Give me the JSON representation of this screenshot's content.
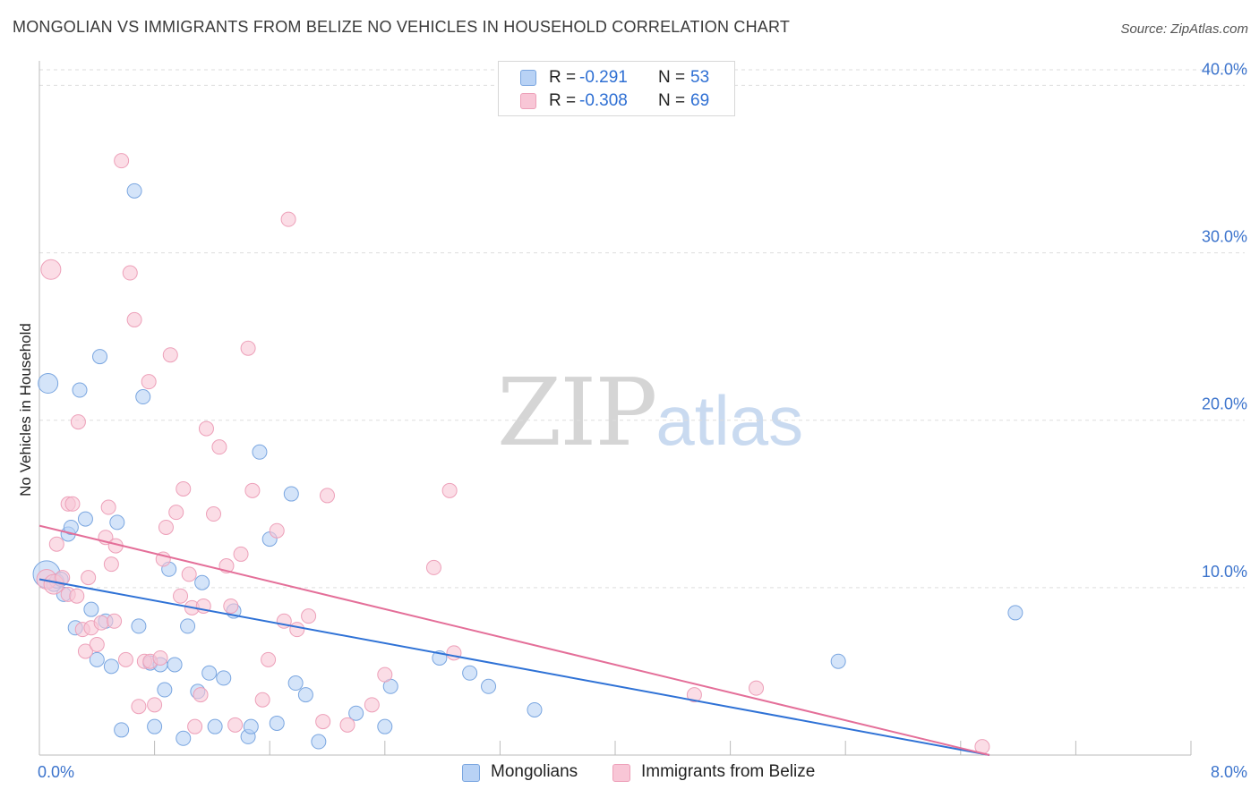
{
  "title": "MONGOLIAN VS IMMIGRANTS FROM BELIZE NO VEHICLES IN HOUSEHOLD CORRELATION CHART",
  "source": "Source: ZipAtlas.com",
  "watermark": {
    "zip": "ZIP",
    "atlas": "atlas"
  },
  "legend": {
    "row1": {
      "r_label": "R =",
      "r_value": "-0.291",
      "n_label": "N =",
      "n_value": "53"
    },
    "row2": {
      "r_label": "R =",
      "r_value": "-0.308",
      "n_label": "N =",
      "n_value": "69"
    }
  },
  "bottom_legend": {
    "series1": "Mongolians",
    "series2": "Immigrants from Belize"
  },
  "colors": {
    "blue_fill": "#b8d2f5",
    "blue_stroke": "#7aa6e0",
    "blue_line": "#2f72d6",
    "pink_fill": "#f8c6d6",
    "pink_stroke": "#eda0b9",
    "pink_line": "#e46f99",
    "tick_text": "#3b73cc",
    "grid": "#dddddd"
  },
  "chart_data": {
    "type": "scatter",
    "title": "MONGOLIAN VS IMMIGRANTS FROM BELIZE NO VEHICLES IN HOUSEHOLD CORRELATION CHART",
    "xlabel": "",
    "ylabel": "No Vehicles in Household",
    "xlim": [
      0,
      8
    ],
    "ylim": [
      0,
      42
    ],
    "x_tick_labels": [
      "0.0%",
      "8.0%"
    ],
    "y_ticks": [
      10,
      20,
      30,
      40
    ],
    "y_tick_labels": [
      "10.0%",
      "20.0%",
      "30.0%",
      "40.0%"
    ],
    "grid": true,
    "legend_position": "top-center",
    "series": [
      {
        "name": "Mongolians",
        "r": -0.291,
        "n": 53,
        "trend": {
          "x": [
            0,
            6.6
          ],
          "y": [
            10.5,
            0
          ]
        },
        "points": [
          {
            "x": 0.05,
            "y": 10.8,
            "s": 3
          },
          {
            "x": 0.06,
            "y": 22.2,
            "s": 2
          },
          {
            "x": 0.1,
            "y": 10.2,
            "s": 1
          },
          {
            "x": 0.12,
            "y": 10.4,
            "s": 1
          },
          {
            "x": 0.15,
            "y": 10.5,
            "s": 1
          },
          {
            "x": 0.17,
            "y": 9.6,
            "s": 1
          },
          {
            "x": 0.2,
            "y": 13.2,
            "s": 1
          },
          {
            "x": 0.22,
            "y": 13.6,
            "s": 1
          },
          {
            "x": 0.25,
            "y": 7.6,
            "s": 1
          },
          {
            "x": 0.28,
            "y": 21.8,
            "s": 1
          },
          {
            "x": 0.32,
            "y": 14.1,
            "s": 1
          },
          {
            "x": 0.36,
            "y": 8.7,
            "s": 1
          },
          {
            "x": 0.4,
            "y": 5.7,
            "s": 1
          },
          {
            "x": 0.42,
            "y": 23.8,
            "s": 1
          },
          {
            "x": 0.46,
            "y": 8.0,
            "s": 1
          },
          {
            "x": 0.5,
            "y": 5.3,
            "s": 1
          },
          {
            "x": 0.54,
            "y": 13.9,
            "s": 1
          },
          {
            "x": 0.57,
            "y": 1.5,
            "s": 1
          },
          {
            "x": 0.66,
            "y": 33.7,
            "s": 1
          },
          {
            "x": 0.69,
            "y": 7.7,
            "s": 1
          },
          {
            "x": 0.72,
            "y": 21.4,
            "s": 1
          },
          {
            "x": 0.77,
            "y": 5.5,
            "s": 1
          },
          {
            "x": 0.8,
            "y": 1.7,
            "s": 1
          },
          {
            "x": 0.84,
            "y": 5.4,
            "s": 1
          },
          {
            "x": 0.87,
            "y": 3.9,
            "s": 1
          },
          {
            "x": 0.9,
            "y": 11.1,
            "s": 1
          },
          {
            "x": 0.94,
            "y": 5.4,
            "s": 1
          },
          {
            "x": 1.0,
            "y": 1.0,
            "s": 1
          },
          {
            "x": 1.03,
            "y": 7.7,
            "s": 1
          },
          {
            "x": 1.1,
            "y": 3.8,
            "s": 1
          },
          {
            "x": 1.13,
            "y": 10.3,
            "s": 1
          },
          {
            "x": 1.18,
            "y": 4.9,
            "s": 1
          },
          {
            "x": 1.22,
            "y": 1.7,
            "s": 1
          },
          {
            "x": 1.28,
            "y": 4.6,
            "s": 1
          },
          {
            "x": 1.35,
            "y": 8.6,
            "s": 1
          },
          {
            "x": 1.45,
            "y": 1.1,
            "s": 1
          },
          {
            "x": 1.47,
            "y": 1.7,
            "s": 1
          },
          {
            "x": 1.53,
            "y": 18.1,
            "s": 1
          },
          {
            "x": 1.6,
            "y": 12.9,
            "s": 1
          },
          {
            "x": 1.65,
            "y": 1.9,
            "s": 1
          },
          {
            "x": 1.75,
            "y": 15.6,
            "s": 1
          },
          {
            "x": 1.78,
            "y": 4.3,
            "s": 1
          },
          {
            "x": 1.85,
            "y": 3.6,
            "s": 1
          },
          {
            "x": 1.94,
            "y": 0.8,
            "s": 1
          },
          {
            "x": 2.2,
            "y": 2.5,
            "s": 1
          },
          {
            "x": 2.4,
            "y": 1.7,
            "s": 1
          },
          {
            "x": 2.44,
            "y": 4.1,
            "s": 1
          },
          {
            "x": 2.78,
            "y": 5.8,
            "s": 1
          },
          {
            "x": 2.99,
            "y": 4.9,
            "s": 1
          },
          {
            "x": 3.12,
            "y": 4.1,
            "s": 1
          },
          {
            "x": 3.44,
            "y": 2.7,
            "s": 1
          },
          {
            "x": 5.55,
            "y": 5.6,
            "s": 1
          },
          {
            "x": 6.78,
            "y": 8.5,
            "s": 1
          }
        ]
      },
      {
        "name": "Immigrants from Belize",
        "r": -0.308,
        "n": 69,
        "trend": {
          "x": [
            0,
            6.6
          ],
          "y": [
            13.7,
            0
          ]
        },
        "points": [
          {
            "x": 0.05,
            "y": 10.5,
            "s": 2
          },
          {
            "x": 0.08,
            "y": 29.0,
            "s": 2
          },
          {
            "x": 0.1,
            "y": 10.2,
            "s": 2
          },
          {
            "x": 0.12,
            "y": 12.6,
            "s": 1
          },
          {
            "x": 0.16,
            "y": 10.6,
            "s": 1
          },
          {
            "x": 0.2,
            "y": 9.6,
            "s": 1
          },
          {
            "x": 0.2,
            "y": 15.0,
            "s": 1
          },
          {
            "x": 0.23,
            "y": 15.0,
            "s": 1
          },
          {
            "x": 0.26,
            "y": 9.5,
            "s": 1
          },
          {
            "x": 0.27,
            "y": 19.9,
            "s": 1
          },
          {
            "x": 0.3,
            "y": 7.5,
            "s": 1
          },
          {
            "x": 0.32,
            "y": 6.2,
            "s": 1
          },
          {
            "x": 0.36,
            "y": 7.6,
            "s": 1
          },
          {
            "x": 0.4,
            "y": 6.6,
            "s": 1
          },
          {
            "x": 0.43,
            "y": 7.9,
            "s": 1
          },
          {
            "x": 0.46,
            "y": 13.0,
            "s": 1
          },
          {
            "x": 0.48,
            "y": 14.8,
            "s": 1
          },
          {
            "x": 0.5,
            "y": 11.4,
            "s": 1
          },
          {
            "x": 0.53,
            "y": 12.5,
            "s": 1
          },
          {
            "x": 0.57,
            "y": 35.5,
            "s": 1
          },
          {
            "x": 0.6,
            "y": 5.7,
            "s": 1
          },
          {
            "x": 0.63,
            "y": 28.8,
            "s": 1
          },
          {
            "x": 0.66,
            "y": 26.0,
            "s": 1
          },
          {
            "x": 0.69,
            "y": 2.9,
            "s": 1
          },
          {
            "x": 0.73,
            "y": 5.6,
            "s": 1
          },
          {
            "x": 0.76,
            "y": 22.3,
            "s": 1
          },
          {
            "x": 0.77,
            "y": 5.6,
            "s": 1
          },
          {
            "x": 0.8,
            "y": 3.0,
            "s": 1
          },
          {
            "x": 0.84,
            "y": 5.8,
            "s": 1
          },
          {
            "x": 0.86,
            "y": 11.7,
            "s": 1
          },
          {
            "x": 0.88,
            "y": 13.6,
            "s": 1
          },
          {
            "x": 0.91,
            "y": 23.9,
            "s": 1
          },
          {
            "x": 0.95,
            "y": 14.5,
            "s": 1
          },
          {
            "x": 0.98,
            "y": 9.5,
            "s": 1
          },
          {
            "x": 1.0,
            "y": 15.9,
            "s": 1
          },
          {
            "x": 1.04,
            "y": 10.8,
            "s": 1
          },
          {
            "x": 1.06,
            "y": 8.8,
            "s": 1
          },
          {
            "x": 1.08,
            "y": 1.7,
            "s": 1
          },
          {
            "x": 1.12,
            "y": 3.6,
            "s": 1
          },
          {
            "x": 1.16,
            "y": 19.5,
            "s": 1
          },
          {
            "x": 1.21,
            "y": 14.4,
            "s": 1
          },
          {
            "x": 1.25,
            "y": 18.4,
            "s": 1
          },
          {
            "x": 1.3,
            "y": 11.3,
            "s": 1
          },
          {
            "x": 1.33,
            "y": 8.9,
            "s": 1
          },
          {
            "x": 1.36,
            "y": 1.8,
            "s": 1
          },
          {
            "x": 1.4,
            "y": 12.0,
            "s": 1
          },
          {
            "x": 1.45,
            "y": 24.3,
            "s": 1
          },
          {
            "x": 1.48,
            "y": 15.8,
            "s": 1
          },
          {
            "x": 1.55,
            "y": 3.3,
            "s": 1
          },
          {
            "x": 1.59,
            "y": 5.7,
            "s": 1
          },
          {
            "x": 1.65,
            "y": 13.4,
            "s": 1
          },
          {
            "x": 1.73,
            "y": 32.0,
            "s": 1
          },
          {
            "x": 1.79,
            "y": 7.5,
            "s": 1
          },
          {
            "x": 1.87,
            "y": 8.3,
            "s": 1
          },
          {
            "x": 1.97,
            "y": 2.0,
            "s": 1
          },
          {
            "x": 2.0,
            "y": 15.5,
            "s": 1
          },
          {
            "x": 2.14,
            "y": 1.8,
            "s": 1
          },
          {
            "x": 2.31,
            "y": 3.0,
            "s": 1
          },
          {
            "x": 2.4,
            "y": 4.8,
            "s": 1
          },
          {
            "x": 2.74,
            "y": 11.2,
            "s": 1
          },
          {
            "x": 2.85,
            "y": 15.8,
            "s": 1
          },
          {
            "x": 2.88,
            "y": 6.1,
            "s": 1
          },
          {
            "x": 4.55,
            "y": 3.6,
            "s": 1
          },
          {
            "x": 4.98,
            "y": 4.0,
            "s": 1
          },
          {
            "x": 6.55,
            "y": 0.5,
            "s": 1
          },
          {
            "x": 0.52,
            "y": 8.0,
            "s": 1
          },
          {
            "x": 0.34,
            "y": 10.6,
            "s": 1
          },
          {
            "x": 1.14,
            "y": 8.9,
            "s": 1
          },
          {
            "x": 1.7,
            "y": 8.0,
            "s": 1
          }
        ]
      }
    ]
  }
}
